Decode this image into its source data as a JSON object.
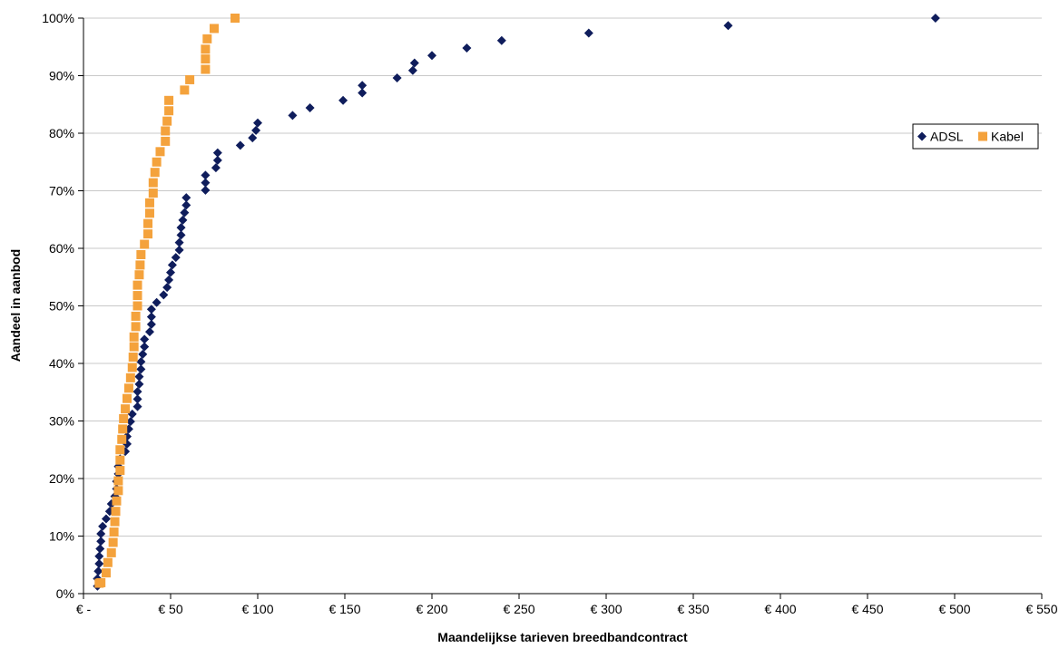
{
  "chart_data": {
    "type": "scatter",
    "xlabel": "Maandelijkse tarieven breedbandcontract",
    "ylabel": "Aandeel in aanbod",
    "xlim": [
      0,
      550
    ],
    "ylim": [
      0,
      100
    ],
    "x_ticks": [
      {
        "value": 0,
        "label": "€ -"
      },
      {
        "value": 50,
        "label": "€ 50"
      },
      {
        "value": 100,
        "label": "€ 100"
      },
      {
        "value": 150,
        "label": "€ 150"
      },
      {
        "value": 200,
        "label": "€ 200"
      },
      {
        "value": 250,
        "label": "€ 250"
      },
      {
        "value": 300,
        "label": "€ 300"
      },
      {
        "value": 350,
        "label": "€ 350"
      },
      {
        "value": 400,
        "label": "€ 400"
      },
      {
        "value": 450,
        "label": "€ 450"
      },
      {
        "value": 500,
        "label": "€ 500"
      },
      {
        "value": 550,
        "label": "€ 550"
      }
    ],
    "y_ticks": [
      {
        "value": 0,
        "label": "0%"
      },
      {
        "value": 10,
        "label": "10%"
      },
      {
        "value": 20,
        "label": "20%"
      },
      {
        "value": 30,
        "label": "30%"
      },
      {
        "value": 40,
        "label": "40%"
      },
      {
        "value": 50,
        "label": "50%"
      },
      {
        "value": 60,
        "label": "60%"
      },
      {
        "value": 70,
        "label": "70%"
      },
      {
        "value": 80,
        "label": "80%"
      },
      {
        "value": 90,
        "label": "90%"
      },
      {
        "value": 100,
        "label": "100%"
      }
    ],
    "grid": {
      "horizontal": true,
      "vertical": false
    },
    "legend_position": "right",
    "series": [
      {
        "name": "ADSL",
        "marker": "diamond",
        "color": "#0f1d5c",
        "points": [
          [
            8,
            1.3
          ],
          [
            8,
            2.6
          ],
          [
            8.5,
            3.9
          ],
          [
            9,
            5.2
          ],
          [
            9,
            6.5
          ],
          [
            9.5,
            7.8
          ],
          [
            10,
            9.1
          ],
          [
            10,
            10.4
          ],
          [
            11,
            11.7
          ],
          [
            13,
            13.0
          ],
          [
            15,
            14.3
          ],
          [
            16,
            15.6
          ],
          [
            18,
            16.9
          ],
          [
            19,
            18.2
          ],
          [
            19,
            19.5
          ],
          [
            20,
            20.8
          ],
          [
            20,
            22.1
          ],
          [
            21,
            23.4
          ],
          [
            24,
            24.7
          ],
          [
            25,
            26.0
          ],
          [
            25,
            27.3
          ],
          [
            26,
            28.6
          ],
          [
            27,
            29.9
          ],
          [
            28,
            31.2
          ],
          [
            31,
            32.5
          ],
          [
            31,
            33.8
          ],
          [
            31,
            35.1
          ],
          [
            32,
            36.4
          ],
          [
            32,
            37.7
          ],
          [
            33,
            39.0
          ],
          [
            33,
            40.3
          ],
          [
            34,
            41.6
          ],
          [
            35,
            42.9
          ],
          [
            35,
            44.2
          ],
          [
            38,
            45.5
          ],
          [
            39,
            46.8
          ],
          [
            39,
            48.1
          ],
          [
            39,
            49.4
          ],
          [
            42,
            50.6
          ],
          [
            46,
            51.9
          ],
          [
            48,
            53.2
          ],
          [
            49,
            54.5
          ],
          [
            50,
            55.8
          ],
          [
            51,
            57.1
          ],
          [
            53,
            58.4
          ],
          [
            55,
            59.7
          ],
          [
            55,
            61.0
          ],
          [
            56,
            62.3
          ],
          [
            56,
            63.6
          ],
          [
            57,
            64.9
          ],
          [
            58,
            66.2
          ],
          [
            59,
            67.5
          ],
          [
            59,
            68.8
          ],
          [
            70,
            70.1
          ],
          [
            70,
            71.4
          ],
          [
            70,
            72.7
          ],
          [
            76,
            74.0
          ],
          [
            77,
            75.3
          ],
          [
            77,
            76.6
          ],
          [
            90,
            77.9
          ],
          [
            97,
            79.2
          ],
          [
            99,
            80.5
          ],
          [
            100,
            81.8
          ],
          [
            120,
            83.1
          ],
          [
            130,
            84.4
          ],
          [
            149,
            85.7
          ],
          [
            160,
            87.0
          ],
          [
            160,
            88.3
          ],
          [
            180,
            89.6
          ],
          [
            189,
            90.9
          ],
          [
            190,
            92.2
          ],
          [
            200,
            93.5
          ],
          [
            220,
            94.8
          ],
          [
            240,
            96.1
          ],
          [
            290,
            97.4
          ],
          [
            370,
            98.7
          ],
          [
            489,
            100
          ]
        ]
      },
      {
        "name": "Kabel",
        "marker": "square",
        "color": "#f4a23c",
        "points": [
          [
            9,
            1.8
          ],
          [
            10,
            1.9
          ],
          [
            13,
            3.6
          ],
          [
            14,
            5.4
          ],
          [
            16,
            7.1
          ],
          [
            17,
            8.9
          ],
          [
            17.5,
            10.7
          ],
          [
            18,
            12.5
          ],
          [
            18.5,
            14.3
          ],
          [
            19,
            16.1
          ],
          [
            20,
            17.9
          ],
          [
            20,
            19.6
          ],
          [
            21,
            21.4
          ],
          [
            21,
            23.2
          ],
          [
            21,
            25.0
          ],
          [
            22,
            26.8
          ],
          [
            22.5,
            28.6
          ],
          [
            23,
            30.4
          ],
          [
            24,
            32.1
          ],
          [
            25,
            33.9
          ],
          [
            26,
            35.7
          ],
          [
            27,
            37.5
          ],
          [
            28,
            39.3
          ],
          [
            28.5,
            41.1
          ],
          [
            29,
            42.9
          ],
          [
            29,
            44.6
          ],
          [
            30,
            46.4
          ],
          [
            30,
            48.2
          ],
          [
            31,
            50.0
          ],
          [
            31,
            51.8
          ],
          [
            31,
            53.6
          ],
          [
            32,
            55.4
          ],
          [
            32.5,
            57.1
          ],
          [
            33,
            58.9
          ],
          [
            35,
            60.7
          ],
          [
            37,
            62.5
          ],
          [
            37,
            64.3
          ],
          [
            38,
            66.1
          ],
          [
            38,
            67.9
          ],
          [
            40,
            69.6
          ],
          [
            40,
            71.4
          ],
          [
            41,
            73.2
          ],
          [
            42,
            75.0
          ],
          [
            44,
            76.8
          ],
          [
            47,
            78.6
          ],
          [
            47,
            80.4
          ],
          [
            48,
            82.1
          ],
          [
            49,
            83.9
          ],
          [
            49,
            85.7
          ],
          [
            58,
            87.5
          ],
          [
            61,
            89.3
          ],
          [
            70,
            91.1
          ],
          [
            70,
            92.9
          ],
          [
            70,
            94.6
          ],
          [
            71,
            96.4
          ],
          [
            75,
            98.2
          ],
          [
            87,
            100
          ]
        ]
      }
    ]
  }
}
